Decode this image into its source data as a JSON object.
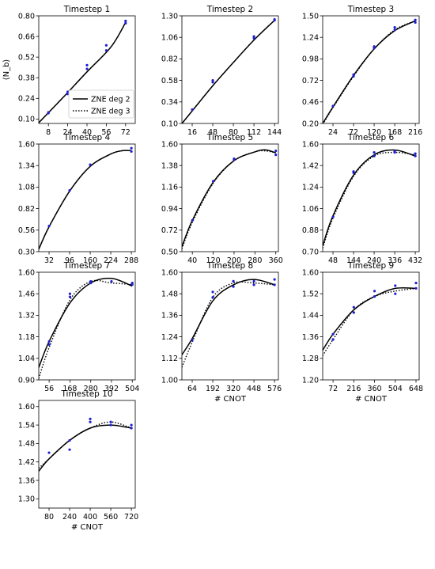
{
  "figure": {
    "ylabel": "⟨N_b⟩"
  },
  "legend": {
    "panel": 0,
    "placement": "lower-right",
    "entries": [
      {
        "label": "ZNE deg 2",
        "style": "solid",
        "color": "#000000"
      },
      {
        "label": "ZNE deg 3",
        "style": "dotted",
        "color": "#000000"
      }
    ]
  },
  "colors": {
    "points": "#1f1fd0",
    "curves": "#000000"
  },
  "chart_data": [
    {
      "type": "line",
      "title": "Timestep 1",
      "xlabel": "",
      "xticks": [
        8,
        24,
        40,
        56,
        72
      ],
      "yticks": [
        0.1,
        0.24,
        0.38,
        0.52,
        0.66,
        0.8
      ],
      "xlim": [
        0,
        80
      ],
      "ylim": [
        0.07,
        0.8
      ],
      "deg2": [
        [
          0,
          0.075
        ],
        [
          20,
          0.245
        ],
        [
          40,
          0.42
        ],
        [
          60,
          0.59
        ],
        [
          72,
          0.755
        ]
      ],
      "deg3": [
        [
          0,
          0.075
        ],
        [
          20,
          0.245
        ],
        [
          40,
          0.42
        ],
        [
          60,
          0.59
        ],
        [
          72,
          0.755
        ]
      ],
      "points": [
        [
          8,
          0.14
        ],
        [
          8,
          0.145
        ],
        [
          24,
          0.27
        ],
        [
          24,
          0.285
        ],
        [
          40,
          0.44
        ],
        [
          40,
          0.465
        ],
        [
          56,
          0.565
        ],
        [
          56,
          0.6
        ],
        [
          72,
          0.75
        ],
        [
          72,
          0.765
        ]
      ]
    },
    {
      "type": "line",
      "title": "Timestep 2",
      "xlabel": "",
      "xticks": [
        16,
        48,
        80,
        112,
        144
      ],
      "yticks": [
        0.1,
        0.34,
        0.58,
        0.82,
        1.06,
        1.3
      ],
      "xlim": [
        0,
        150
      ],
      "ylim": [
        0.1,
        1.3
      ],
      "deg2": [
        [
          0,
          0.1
        ],
        [
          16,
          0.24
        ],
        [
          48,
          0.52
        ],
        [
          80,
          0.78
        ],
        [
          112,
          1.03
        ],
        [
          144,
          1.25
        ]
      ],
      "deg3": [
        [
          0,
          0.1
        ],
        [
          16,
          0.24
        ],
        [
          48,
          0.52
        ],
        [
          80,
          0.78
        ],
        [
          112,
          1.03
        ],
        [
          144,
          1.25
        ]
      ],
      "points": [
        [
          16,
          0.255
        ],
        [
          48,
          0.56
        ],
        [
          48,
          0.58
        ],
        [
          112,
          1.05
        ],
        [
          112,
          1.07
        ],
        [
          144,
          1.25
        ],
        [
          144,
          1.26
        ]
      ]
    },
    {
      "type": "line",
      "title": "Timestep 3",
      "xlabel": "",
      "xticks": [
        24,
        72,
        120,
        168,
        216
      ],
      "yticks": [
        0.2,
        0.46,
        0.72,
        0.98,
        1.24,
        1.5
      ],
      "xlim": [
        0,
        225
      ],
      "ylim": [
        0.2,
        1.5
      ],
      "deg2": [
        [
          0,
          0.2
        ],
        [
          24,
          0.4
        ],
        [
          72,
          0.78
        ],
        [
          120,
          1.1
        ],
        [
          168,
          1.32
        ],
        [
          216,
          1.44
        ]
      ],
      "deg3": [
        [
          0,
          0.19
        ],
        [
          24,
          0.39
        ],
        [
          72,
          0.77
        ],
        [
          120,
          1.1
        ],
        [
          168,
          1.33
        ],
        [
          216,
          1.44
        ]
      ],
      "points": [
        [
          24,
          0.41
        ],
        [
          72,
          0.77
        ],
        [
          72,
          0.79
        ],
        [
          120,
          1.11
        ],
        [
          120,
          1.13
        ],
        [
          168,
          1.33
        ],
        [
          168,
          1.36
        ],
        [
          216,
          1.42
        ],
        [
          216,
          1.45
        ]
      ]
    },
    {
      "type": "line",
      "title": "Timestep 4",
      "xlabel": "",
      "xticks": [
        32,
        96,
        160,
        224,
        288
      ],
      "yticks": [
        0.3,
        0.56,
        0.82,
        1.08,
        1.34,
        1.6
      ],
      "xlim": [
        0,
        300
      ],
      "ylim": [
        0.3,
        1.6
      ],
      "deg2": [
        [
          0,
          0.33
        ],
        [
          32,
          0.6
        ],
        [
          96,
          1.03
        ],
        [
          160,
          1.33
        ],
        [
          224,
          1.48
        ],
        [
          260,
          1.52
        ],
        [
          288,
          1.52
        ]
      ],
      "deg3": [
        [
          0,
          0.33
        ],
        [
          32,
          0.6
        ],
        [
          96,
          1.03
        ],
        [
          160,
          1.33
        ],
        [
          224,
          1.48
        ],
        [
          260,
          1.52
        ],
        [
          288,
          1.52
        ]
      ],
      "points": [
        [
          32,
          0.61
        ],
        [
          96,
          1.04
        ],
        [
          160,
          1.35
        ],
        [
          288,
          1.51
        ],
        [
          288,
          1.55
        ]
      ]
    },
    {
      "type": "line",
      "title": "Timestep 5",
      "xlabel": "",
      "xticks": [
        40,
        120,
        200,
        280,
        360
      ],
      "yticks": [
        0.5,
        0.72,
        0.94,
        1.16,
        1.38,
        1.6
      ],
      "xlim": [
        0,
        370
      ],
      "ylim": [
        0.5,
        1.6
      ],
      "deg2": [
        [
          0,
          0.55
        ],
        [
          40,
          0.82
        ],
        [
          120,
          1.21
        ],
        [
          200,
          1.43
        ],
        [
          280,
          1.52
        ],
        [
          320,
          1.54
        ],
        [
          360,
          1.51
        ]
      ],
      "deg3": [
        [
          0,
          0.53
        ],
        [
          40,
          0.8
        ],
        [
          120,
          1.2
        ],
        [
          200,
          1.43
        ],
        [
          280,
          1.52
        ],
        [
          320,
          1.53
        ],
        [
          360,
          1.51
        ]
      ],
      "points": [
        [
          40,
          0.82
        ],
        [
          120,
          1.22
        ],
        [
          200,
          1.44
        ],
        [
          200,
          1.45
        ],
        [
          360,
          1.49
        ],
        [
          360,
          1.53
        ]
      ]
    },
    {
      "type": "line",
      "title": "Timestep 6",
      "xlabel": "",
      "xticks": [
        48,
        144,
        240,
        336,
        432
      ],
      "yticks": [
        0.7,
        0.88,
        1.06,
        1.24,
        1.42,
        1.6
      ],
      "xlim": [
        0,
        450
      ],
      "ylim": [
        0.7,
        1.6
      ],
      "deg2": [
        [
          0,
          0.75
        ],
        [
          48,
          1.0
        ],
        [
          144,
          1.34
        ],
        [
          240,
          1.51
        ],
        [
          336,
          1.55
        ],
        [
          432,
          1.5
        ]
      ],
      "deg3": [
        [
          0,
          0.73
        ],
        [
          48,
          0.98
        ],
        [
          144,
          1.33
        ],
        [
          240,
          1.5
        ],
        [
          336,
          1.53
        ],
        [
          432,
          1.51
        ]
      ],
      "points": [
        [
          48,
          0.99
        ],
        [
          144,
          1.36
        ],
        [
          144,
          1.37
        ],
        [
          240,
          1.5
        ],
        [
          240,
          1.53
        ],
        [
          336,
          1.53
        ],
        [
          336,
          1.54
        ],
        [
          432,
          1.5
        ],
        [
          432,
          1.52
        ]
      ]
    },
    {
      "type": "line",
      "title": "Timestep 7",
      "xlabel": "",
      "xticks": [
        56,
        168,
        280,
        392,
        504
      ],
      "yticks": [
        0.9,
        1.04,
        1.18,
        1.32,
        1.46,
        1.6
      ],
      "xlim": [
        0,
        520
      ],
      "ylim": [
        0.9,
        1.6
      ],
      "deg2": [
        [
          0,
          0.98
        ],
        [
          56,
          1.15
        ],
        [
          168,
          1.4
        ],
        [
          280,
          1.53
        ],
        [
          392,
          1.56
        ],
        [
          504,
          1.51
        ]
      ],
      "deg3": [
        [
          0,
          0.91
        ],
        [
          56,
          1.11
        ],
        [
          168,
          1.42
        ],
        [
          280,
          1.54
        ],
        [
          392,
          1.53
        ],
        [
          504,
          1.52
        ]
      ],
      "points": [
        [
          56,
          1.13
        ],
        [
          56,
          1.15
        ],
        [
          168,
          1.44
        ],
        [
          168,
          1.46
        ],
        [
          280,
          1.53
        ],
        [
          280,
          1.54
        ],
        [
          392,
          1.54
        ],
        [
          504,
          1.52
        ],
        [
          504,
          1.53
        ]
      ]
    },
    {
      "type": "line",
      "title": "Timestep 8",
      "xlabel": "# CNOT",
      "xticks": [
        64,
        192,
        320,
        448,
        576
      ],
      "yticks": [
        1.0,
        1.12,
        1.24,
        1.36,
        1.48,
        1.6
      ],
      "xlim": [
        0,
        600
      ],
      "ylim": [
        1.0,
        1.6
      ],
      "deg2": [
        [
          0,
          1.14
        ],
        [
          64,
          1.23
        ],
        [
          192,
          1.44
        ],
        [
          320,
          1.53
        ],
        [
          448,
          1.56
        ],
        [
          576,
          1.53
        ]
      ],
      "deg3": [
        [
          0,
          1.07
        ],
        [
          64,
          1.21
        ],
        [
          192,
          1.46
        ],
        [
          320,
          1.54
        ],
        [
          448,
          1.54
        ],
        [
          576,
          1.53
        ]
      ],
      "points": [
        [
          64,
          1.22
        ],
        [
          192,
          1.46
        ],
        [
          192,
          1.49
        ],
        [
          320,
          1.52
        ],
        [
          320,
          1.55
        ],
        [
          448,
          1.53
        ],
        [
          448,
          1.55
        ],
        [
          576,
          1.53
        ],
        [
          576,
          1.56
        ]
      ]
    },
    {
      "type": "line",
      "title": "Timestep 9",
      "xlabel": "# CNOT",
      "xticks": [
        72,
        216,
        360,
        504,
        648
      ],
      "yticks": [
        1.2,
        1.28,
        1.36,
        1.44,
        1.52,
        1.6
      ],
      "xlim": [
        0,
        670
      ],
      "ylim": [
        1.2,
        1.6
      ],
      "deg2": [
        [
          0,
          1.31
        ],
        [
          72,
          1.37
        ],
        [
          216,
          1.46
        ],
        [
          360,
          1.51
        ],
        [
          504,
          1.54
        ],
        [
          648,
          1.54
        ]
      ],
      "deg3": [
        [
          0,
          1.29
        ],
        [
          72,
          1.35
        ],
        [
          216,
          1.46
        ],
        [
          360,
          1.51
        ],
        [
          504,
          1.53
        ],
        [
          648,
          1.54
        ]
      ],
      "points": [
        [
          72,
          1.35
        ],
        [
          72,
          1.37
        ],
        [
          216,
          1.45
        ],
        [
          216,
          1.47
        ],
        [
          360,
          1.51
        ],
        [
          360,
          1.53
        ],
        [
          504,
          1.52
        ],
        [
          504,
          1.55
        ],
        [
          648,
          1.54
        ],
        [
          648,
          1.56
        ]
      ]
    },
    {
      "type": "line",
      "title": "Timestep 10",
      "xlabel": "# CNOT",
      "xticks": [
        80,
        240,
        400,
        560,
        720
      ],
      "yticks": [
        1.3,
        1.36,
        1.42,
        1.48,
        1.54,
        1.6
      ],
      "xlim": [
        0,
        750
      ],
      "ylim": [
        1.27,
        1.62
      ],
      "deg2": [
        [
          0,
          1.39
        ],
        [
          80,
          1.43
        ],
        [
          240,
          1.49
        ],
        [
          400,
          1.53
        ],
        [
          560,
          1.54
        ],
        [
          720,
          1.53
        ]
      ],
      "deg3": [
        [
          0,
          1.4
        ],
        [
          80,
          1.43
        ],
        [
          240,
          1.49
        ],
        [
          400,
          1.53
        ],
        [
          560,
          1.55
        ],
        [
          720,
          1.53
        ]
      ],
      "points": [
        [
          80,
          1.45
        ],
        [
          240,
          1.46
        ],
        [
          240,
          1.49
        ],
        [
          400,
          1.55
        ],
        [
          400,
          1.56
        ],
        [
          560,
          1.54
        ],
        [
          560,
          1.55
        ],
        [
          720,
          1.53
        ],
        [
          720,
          1.54
        ]
      ]
    }
  ]
}
